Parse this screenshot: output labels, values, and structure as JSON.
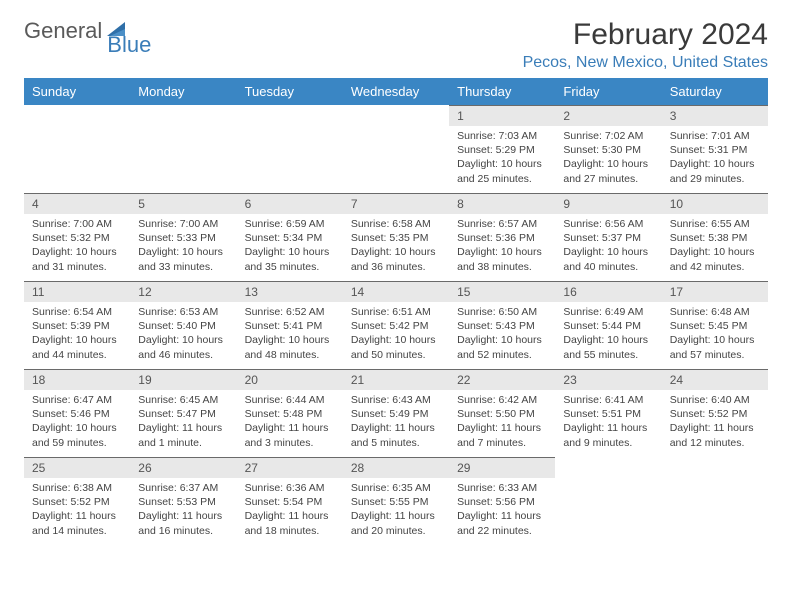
{
  "branding": {
    "text1": "General",
    "text2": "Blue",
    "icon_color": "#2f6fa8"
  },
  "header": {
    "month_title": "February 2024",
    "location": "Pecos, New Mexico, United States"
  },
  "styling": {
    "header_bg": "#3a86c4",
    "header_text": "#ffffff",
    "daynum_bg": "#e8e8e8",
    "daynum_border": "#6a6a6a",
    "body_text": "#444444",
    "location_color": "#3a7db8"
  },
  "calendar": {
    "day_names": [
      "Sunday",
      "Monday",
      "Tuesday",
      "Wednesday",
      "Thursday",
      "Friday",
      "Saturday"
    ],
    "first_weekday_index": 4,
    "days": [
      {
        "n": 1,
        "sunrise": "7:03 AM",
        "sunset": "5:29 PM",
        "daylight": "10 hours and 25 minutes."
      },
      {
        "n": 2,
        "sunrise": "7:02 AM",
        "sunset": "5:30 PM",
        "daylight": "10 hours and 27 minutes."
      },
      {
        "n": 3,
        "sunrise": "7:01 AM",
        "sunset": "5:31 PM",
        "daylight": "10 hours and 29 minutes."
      },
      {
        "n": 4,
        "sunrise": "7:00 AM",
        "sunset": "5:32 PM",
        "daylight": "10 hours and 31 minutes."
      },
      {
        "n": 5,
        "sunrise": "7:00 AM",
        "sunset": "5:33 PM",
        "daylight": "10 hours and 33 minutes."
      },
      {
        "n": 6,
        "sunrise": "6:59 AM",
        "sunset": "5:34 PM",
        "daylight": "10 hours and 35 minutes."
      },
      {
        "n": 7,
        "sunrise": "6:58 AM",
        "sunset": "5:35 PM",
        "daylight": "10 hours and 36 minutes."
      },
      {
        "n": 8,
        "sunrise": "6:57 AM",
        "sunset": "5:36 PM",
        "daylight": "10 hours and 38 minutes."
      },
      {
        "n": 9,
        "sunrise": "6:56 AM",
        "sunset": "5:37 PM",
        "daylight": "10 hours and 40 minutes."
      },
      {
        "n": 10,
        "sunrise": "6:55 AM",
        "sunset": "5:38 PM",
        "daylight": "10 hours and 42 minutes."
      },
      {
        "n": 11,
        "sunrise": "6:54 AM",
        "sunset": "5:39 PM",
        "daylight": "10 hours and 44 minutes."
      },
      {
        "n": 12,
        "sunrise": "6:53 AM",
        "sunset": "5:40 PM",
        "daylight": "10 hours and 46 minutes."
      },
      {
        "n": 13,
        "sunrise": "6:52 AM",
        "sunset": "5:41 PM",
        "daylight": "10 hours and 48 minutes."
      },
      {
        "n": 14,
        "sunrise": "6:51 AM",
        "sunset": "5:42 PM",
        "daylight": "10 hours and 50 minutes."
      },
      {
        "n": 15,
        "sunrise": "6:50 AM",
        "sunset": "5:43 PM",
        "daylight": "10 hours and 52 minutes."
      },
      {
        "n": 16,
        "sunrise": "6:49 AM",
        "sunset": "5:44 PM",
        "daylight": "10 hours and 55 minutes."
      },
      {
        "n": 17,
        "sunrise": "6:48 AM",
        "sunset": "5:45 PM",
        "daylight": "10 hours and 57 minutes."
      },
      {
        "n": 18,
        "sunrise": "6:47 AM",
        "sunset": "5:46 PM",
        "daylight": "10 hours and 59 minutes."
      },
      {
        "n": 19,
        "sunrise": "6:45 AM",
        "sunset": "5:47 PM",
        "daylight": "11 hours and 1 minute."
      },
      {
        "n": 20,
        "sunrise": "6:44 AM",
        "sunset": "5:48 PM",
        "daylight": "11 hours and 3 minutes."
      },
      {
        "n": 21,
        "sunrise": "6:43 AM",
        "sunset": "5:49 PM",
        "daylight": "11 hours and 5 minutes."
      },
      {
        "n": 22,
        "sunrise": "6:42 AM",
        "sunset": "5:50 PM",
        "daylight": "11 hours and 7 minutes."
      },
      {
        "n": 23,
        "sunrise": "6:41 AM",
        "sunset": "5:51 PM",
        "daylight": "11 hours and 9 minutes."
      },
      {
        "n": 24,
        "sunrise": "6:40 AM",
        "sunset": "5:52 PM",
        "daylight": "11 hours and 12 minutes."
      },
      {
        "n": 25,
        "sunrise": "6:38 AM",
        "sunset": "5:52 PM",
        "daylight": "11 hours and 14 minutes."
      },
      {
        "n": 26,
        "sunrise": "6:37 AM",
        "sunset": "5:53 PM",
        "daylight": "11 hours and 16 minutes."
      },
      {
        "n": 27,
        "sunrise": "6:36 AM",
        "sunset": "5:54 PM",
        "daylight": "11 hours and 18 minutes."
      },
      {
        "n": 28,
        "sunrise": "6:35 AM",
        "sunset": "5:55 PM",
        "daylight": "11 hours and 20 minutes."
      },
      {
        "n": 29,
        "sunrise": "6:33 AM",
        "sunset": "5:56 PM",
        "daylight": "11 hours and 22 minutes."
      }
    ],
    "labels": {
      "sunrise": "Sunrise:",
      "sunset": "Sunset:",
      "daylight": "Daylight:"
    }
  }
}
